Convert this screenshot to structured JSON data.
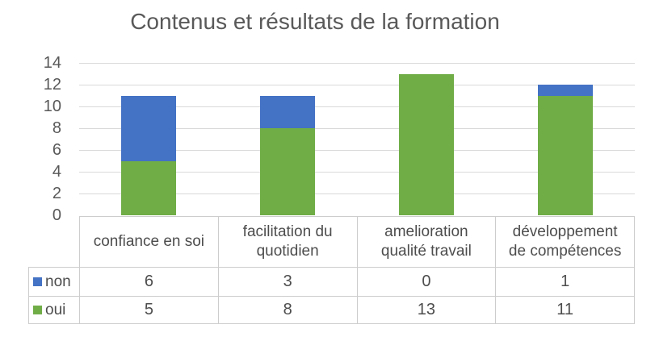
{
  "chart_data": {
    "type": "bar",
    "stacked": true,
    "title": "Contenus et résultats de la formation",
    "xlabel": "",
    "ylabel": "",
    "categories": [
      "confiance en soi",
      "facilitation du quotidien",
      "amelioration qualité travail",
      "développement de compétences"
    ],
    "series": [
      {
        "name": "non",
        "color": "#4472C4",
        "values": [
          6,
          3,
          0,
          1
        ]
      },
      {
        "name": "oui",
        "color": "#70AD47",
        "values": [
          5,
          8,
          13,
          11
        ]
      }
    ],
    "stack_bottom_to_top": [
      "oui",
      "non"
    ],
    "ylim": [
      0,
      14
    ],
    "yticks": [
      0,
      2,
      4,
      6,
      8,
      10,
      12,
      14
    ],
    "grid": true,
    "grid_color": "#d9d9d9",
    "text_color": "#595959",
    "legend_position": "table-left"
  },
  "table": {
    "rows": [
      {
        "label": "non",
        "values": [
          6,
          3,
          0,
          1
        ]
      },
      {
        "label": "oui",
        "values": [
          5,
          8,
          13,
          11
        ]
      }
    ]
  }
}
